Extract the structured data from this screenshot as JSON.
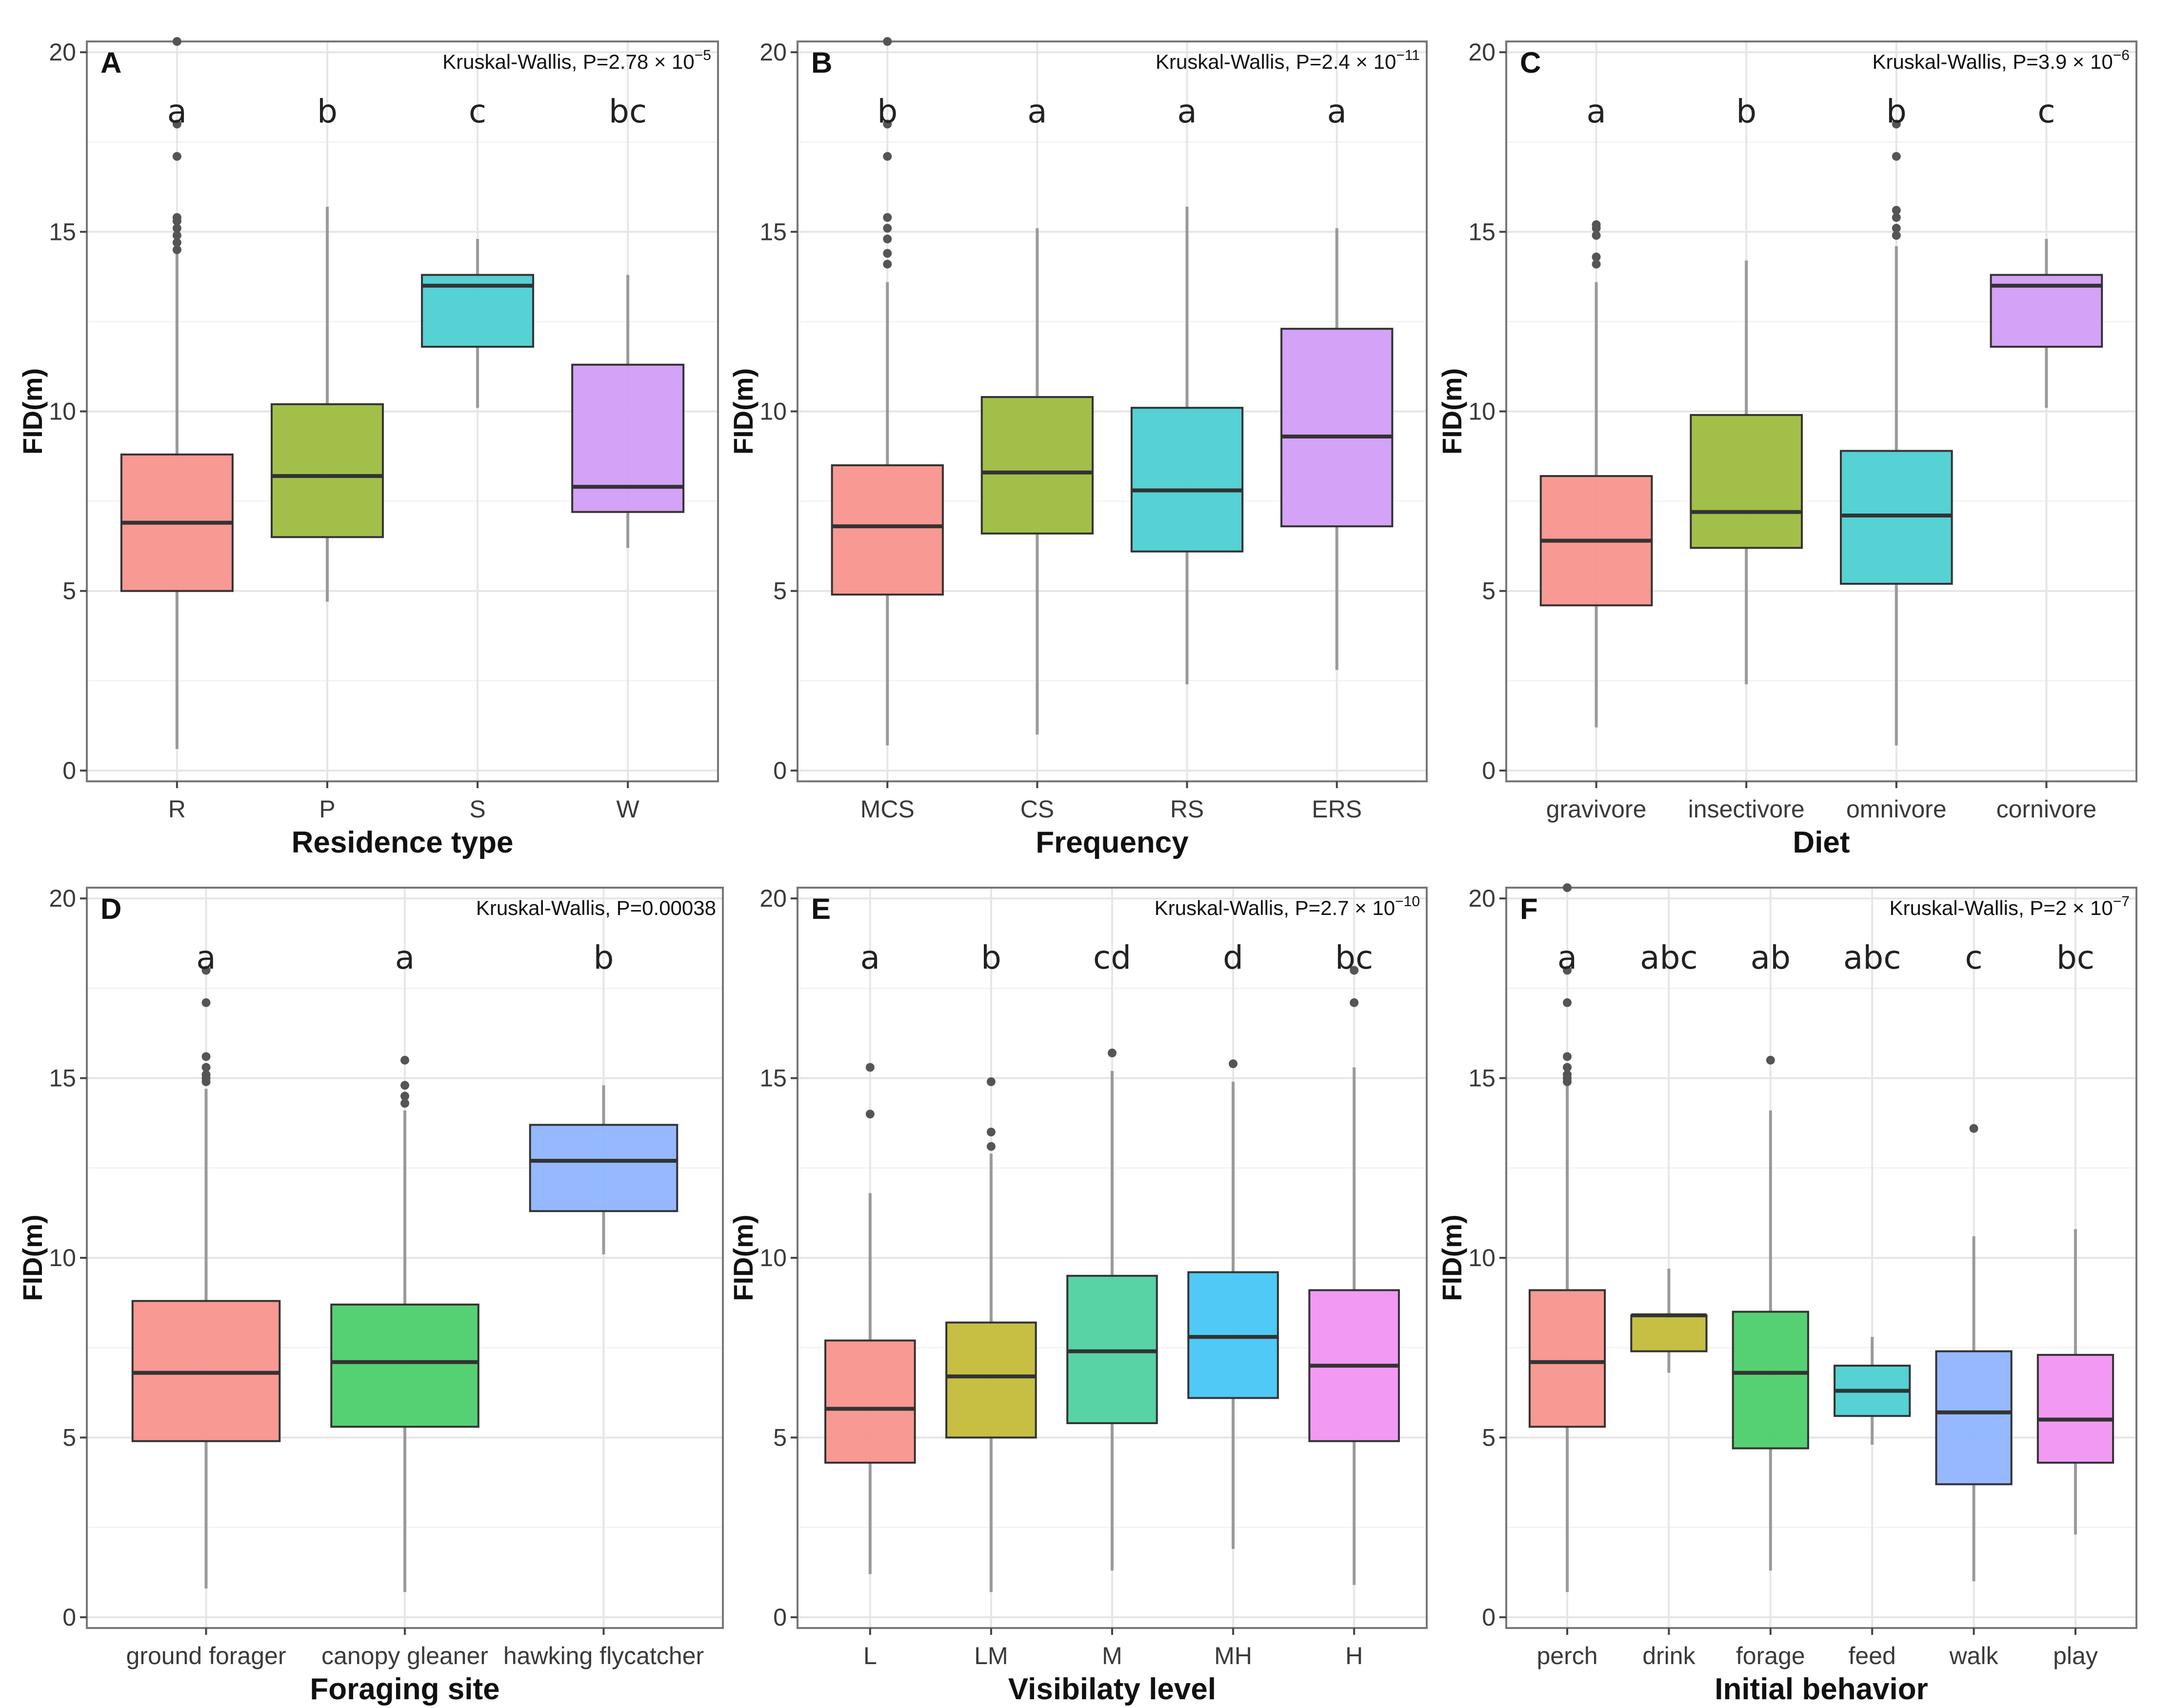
{
  "figure": {
    "y_axis_label": "FID(m)",
    "y_ticks": [
      0,
      5,
      10,
      15,
      20
    ]
  },
  "chart_data": [
    {
      "type": "boxplot",
      "panel": "A",
      "test_text": "Kruskal-Wallis, P=2.78 × 10",
      "test_exp": "−5",
      "xlabel": "Residence type",
      "ylabel": "FID(m)",
      "ylim": [
        -0.3,
        20.3
      ],
      "categories": [
        "R",
        "P",
        "S",
        "W"
      ],
      "colors": [
        "#f8948d",
        "#9dbd3f",
        "#4dcfd2",
        "#d29df5"
      ],
      "sig_letters": [
        "a",
        "b",
        "c",
        "bc"
      ],
      "boxes": [
        {
          "whislo": 0.6,
          "q1": 5.0,
          "med": 6.9,
          "q3": 8.8,
          "whishi": 14.4,
          "fliers": [
            14.5,
            14.7,
            14.9,
            15.1,
            15.3,
            15.4,
            17.1,
            18.0,
            20.3
          ]
        },
        {
          "whislo": 4.7,
          "q1": 6.5,
          "med": 8.2,
          "q3": 10.2,
          "whishi": 15.7,
          "fliers": []
        },
        {
          "whislo": 10.1,
          "q1": 11.8,
          "med": 13.5,
          "q3": 13.8,
          "whishi": 14.8,
          "fliers": []
        },
        {
          "whislo": 6.2,
          "q1": 7.2,
          "med": 7.9,
          "q3": 11.3,
          "whishi": 13.8,
          "fliers": []
        }
      ]
    },
    {
      "type": "boxplot",
      "panel": "B",
      "test_text": "Kruskal-Wallis, P=2.4 × 10",
      "test_exp": "−11",
      "xlabel": "Frequency",
      "ylabel": "FID(m)",
      "ylim": [
        -0.3,
        20.3
      ],
      "categories": [
        "MCS",
        "CS",
        "RS",
        "ERS"
      ],
      "colors": [
        "#f8948d",
        "#9dbd3f",
        "#4dcfd2",
        "#d29df5"
      ],
      "sig_letters": [
        "b",
        "a",
        "a",
        "a"
      ],
      "boxes": [
        {
          "whislo": 0.7,
          "q1": 4.9,
          "med": 6.8,
          "q3": 8.5,
          "whishi": 13.6,
          "fliers": [
            14.1,
            14.4,
            14.8,
            15.1,
            15.4,
            17.1,
            18.0,
            20.3
          ]
        },
        {
          "whislo": 1.0,
          "q1": 6.6,
          "med": 8.3,
          "q3": 10.4,
          "whishi": 15.1,
          "fliers": []
        },
        {
          "whislo": 2.4,
          "q1": 6.1,
          "med": 7.8,
          "q3": 10.1,
          "whishi": 15.7,
          "fliers": []
        },
        {
          "whislo": 2.8,
          "q1": 6.8,
          "med": 9.3,
          "q3": 12.3,
          "whishi": 15.1,
          "fliers": []
        }
      ]
    },
    {
      "type": "boxplot",
      "panel": "C",
      "test_text": "Kruskal-Wallis, P=3.9 × 10",
      "test_exp": "−6",
      "xlabel": "Diet",
      "ylabel": "FID(m)",
      "ylim": [
        -0.3,
        20.3
      ],
      "categories": [
        "gravivore",
        "insectivore",
        "omnivore",
        "cornivore"
      ],
      "colors": [
        "#f8948d",
        "#9dbd3f",
        "#4dcfd2",
        "#d29df5"
      ],
      "sig_letters": [
        "a",
        "b",
        "b",
        "c"
      ],
      "boxes": [
        {
          "whislo": 1.2,
          "q1": 4.6,
          "med": 6.4,
          "q3": 8.2,
          "whishi": 13.6,
          "fliers": [
            14.1,
            14.3,
            14.9,
            15.1,
            15.2
          ]
        },
        {
          "whislo": 2.4,
          "q1": 6.2,
          "med": 7.2,
          "q3": 9.9,
          "whishi": 14.2,
          "fliers": []
        },
        {
          "whislo": 0.7,
          "q1": 5.2,
          "med": 7.1,
          "q3": 8.9,
          "whishi": 14.6,
          "fliers": [
            14.9,
            15.1,
            15.4,
            15.6,
            17.1,
            18.0
          ]
        },
        {
          "whislo": 10.1,
          "q1": 11.8,
          "med": 13.5,
          "q3": 13.8,
          "whishi": 14.8,
          "fliers": []
        }
      ]
    },
    {
      "type": "boxplot",
      "panel": "D",
      "test_text": "Kruskal-Wallis, P=0.00038",
      "test_exp": "",
      "xlabel": "Foraging site",
      "ylabel": "FID(m)",
      "ylim": [
        -0.3,
        20.3
      ],
      "categories": [
        "ground forager",
        "canopy gleaner",
        "hawking flycatcher"
      ],
      "colors": [
        "#f8948d",
        "#4ccf6b",
        "#8fb4ff"
      ],
      "sig_letters": [
        "a",
        "a",
        "b"
      ],
      "boxes": [
        {
          "whislo": 0.8,
          "q1": 4.9,
          "med": 6.8,
          "q3": 8.8,
          "whishi": 14.7,
          "fliers": [
            14.9,
            15.0,
            15.1,
            15.3,
            15.6,
            17.1,
            18.0
          ]
        },
        {
          "whislo": 0.7,
          "q1": 5.3,
          "med": 7.1,
          "q3": 8.7,
          "whishi": 14.1,
          "fliers": [
            14.3,
            14.5,
            14.8,
            15.5
          ]
        },
        {
          "whislo": 10.1,
          "q1": 11.3,
          "med": 12.7,
          "q3": 13.7,
          "whishi": 14.8,
          "fliers": []
        }
      ]
    },
    {
      "type": "boxplot",
      "panel": "E",
      "test_text": "Kruskal-Wallis, P=2.7 × 10",
      "test_exp": "−10",
      "xlabel": "Visibilaty level",
      "ylabel": "FID(m)",
      "ylim": [
        -0.3,
        20.3
      ],
      "categories": [
        "L",
        "LM",
        "M",
        "MH",
        "H"
      ],
      "colors": [
        "#f8948d",
        "#c3bc3a",
        "#4fd1a1",
        "#47c6f5",
        "#f193f2"
      ],
      "sig_letters": [
        "a",
        "b",
        "cd",
        "d",
        "bc"
      ],
      "boxes": [
        {
          "whislo": 1.2,
          "q1": 4.3,
          "med": 5.8,
          "q3": 7.7,
          "whishi": 11.8,
          "fliers": [
            14.0,
            15.3
          ]
        },
        {
          "whislo": 0.7,
          "q1": 5.0,
          "med": 6.7,
          "q3": 8.2,
          "whishi": 12.9,
          "fliers": [
            13.1,
            13.5,
            14.9
          ]
        },
        {
          "whislo": 1.3,
          "q1": 5.4,
          "med": 7.4,
          "q3": 9.5,
          "whishi": 15.2,
          "fliers": [
            15.7
          ]
        },
        {
          "whislo": 1.9,
          "q1": 6.1,
          "med": 7.8,
          "q3": 9.6,
          "whishi": 14.9,
          "fliers": [
            15.4
          ]
        },
        {
          "whislo": 0.9,
          "q1": 4.9,
          "med": 7.0,
          "q3": 9.1,
          "whishi": 15.3,
          "fliers": [
            17.1,
            18.0
          ]
        }
      ]
    },
    {
      "type": "boxplot",
      "panel": "F",
      "test_text": "Kruskal-Wallis, P=2 × 10",
      "test_exp": "−7",
      "xlabel": "Initial behavior",
      "ylabel": "FID(m)",
      "ylim": [
        -0.3,
        20.3
      ],
      "categories": [
        "perch",
        "drink",
        "forage",
        "feed",
        "walk",
        "play"
      ],
      "colors": [
        "#f8948d",
        "#c3bc3a",
        "#4ccf6b",
        "#4dcfd2",
        "#8fb4ff",
        "#f193f2"
      ],
      "sig_letters": [
        "a",
        "abc",
        "ab",
        "abc",
        "c",
        "bc"
      ],
      "boxes": [
        {
          "whislo": 0.7,
          "q1": 5.3,
          "med": 7.1,
          "q3": 9.1,
          "whishi": 14.8,
          "fliers": [
            14.9,
            15.0,
            15.1,
            15.3,
            15.6,
            17.1,
            18.0,
            20.3
          ]
        },
        {
          "whislo": 6.8,
          "q1": 7.4,
          "med": 8.4,
          "q3": 8.4,
          "whishi": 9.7,
          "fliers": []
        },
        {
          "whislo": 1.3,
          "q1": 4.7,
          "med": 6.8,
          "q3": 8.5,
          "whishi": 14.1,
          "fliers": [
            15.5
          ]
        },
        {
          "whislo": 4.8,
          "q1": 5.6,
          "med": 6.3,
          "q3": 7.0,
          "whishi": 7.8,
          "fliers": []
        },
        {
          "whislo": 1.0,
          "q1": 3.7,
          "med": 5.7,
          "q3": 7.4,
          "whishi": 10.6,
          "fliers": [
            13.6
          ]
        },
        {
          "whislo": 2.3,
          "q1": 4.3,
          "med": 5.5,
          "q3": 7.3,
          "whishi": 10.8,
          "fliers": []
        }
      ]
    }
  ]
}
